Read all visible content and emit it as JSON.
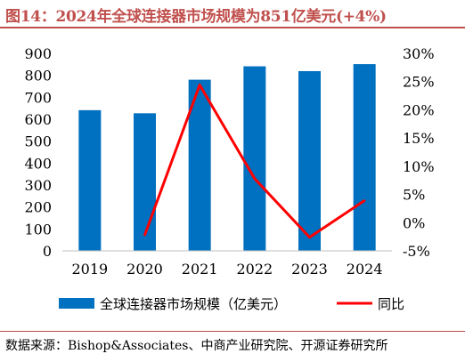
{
  "title": "图14：2024年全球连接器市场规模为851亿美元(+4%)",
  "source": "数据来源：Bishop&Associates、中商产业研究院、开源证券研究所",
  "colors": {
    "bar": "#0070c0",
    "line": "#ff0000",
    "title": "#c0504d"
  },
  "chart_data": {
    "type": "bar",
    "categories": [
      "2019",
      "2020",
      "2021",
      "2022",
      "2023",
      "2024"
    ],
    "series": [
      {
        "name": "全球连接器市场规模（亿美元）",
        "type": "bar",
        "axis": "left",
        "values": [
          641,
          627,
          780,
          841,
          819,
          851
        ]
      },
      {
        "name": "同比",
        "type": "line",
        "axis": "right",
        "values": [
          null,
          -2.2,
          24.4,
          7.8,
          -2.6,
          3.9
        ]
      }
    ],
    "ylim_left": [
      0,
      900
    ],
    "yticks_left": [
      "0",
      "100",
      "200",
      "300",
      "400",
      "500",
      "600",
      "700",
      "800",
      "900"
    ],
    "ylim_right": [
      -5,
      30
    ],
    "yticks_right": [
      "-5%",
      "0%",
      "5%",
      "10%",
      "15%",
      "20%",
      "25%",
      "30%"
    ],
    "grid": false,
    "legend_position": "bottom"
  }
}
